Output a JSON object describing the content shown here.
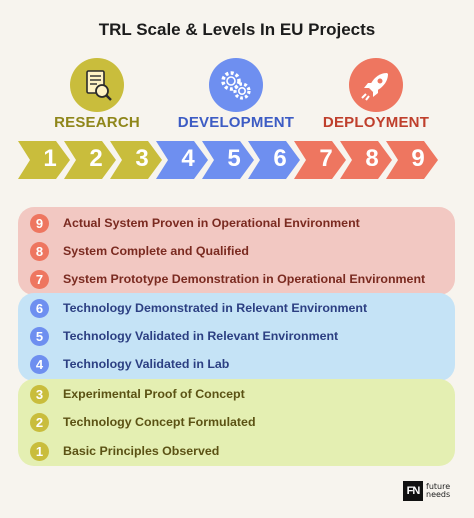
{
  "title": "TRL Scale & Levels In EU Projects",
  "colors": {
    "research": "#c9bd3c",
    "development": "#6e8ff0",
    "deployment": "#ee7660",
    "research_label": "#8f861a",
    "development_label": "#3d5cc4",
    "deployment_label": "#bf3f2c",
    "panel_red": "#f2c8c2",
    "panel_blue": "#c5e3f6",
    "panel_green": "#e4efb2",
    "text_red": "#7a2a20",
    "text_blue": "#2c3f82",
    "text_green": "#5b5214"
  },
  "phases": [
    {
      "label": "RESEARCH",
      "icon": "document-magnifier-icon"
    },
    {
      "label": "DEVELOPMENT",
      "icon": "gears-icon"
    },
    {
      "label": "DEPLOYMENT",
      "icon": "rocket-icon"
    }
  ],
  "steps": [
    "1",
    "2",
    "3",
    "4",
    "5",
    "6",
    "7",
    "8",
    "9"
  ],
  "levels": [
    {
      "num": "9",
      "text": "Actual System Proven in Operational Environment"
    },
    {
      "num": "8",
      "text": "System Complete and Qualified"
    },
    {
      "num": "7",
      "text": "System Prototype Demonstration in Operational Environment"
    },
    {
      "num": "6",
      "text": "Technology Demonstrated in Relevant Environment"
    },
    {
      "num": "5",
      "text": "Technology Validated in Relevant Environment"
    },
    {
      "num": "4",
      "text": "Technology Validated in Lab"
    },
    {
      "num": "3",
      "text": "Experimental Proof of Concept"
    },
    {
      "num": "2",
      "text": "Technology Concept Formulated"
    },
    {
      "num": "1",
      "text": "Basic Principles Observed"
    }
  ],
  "logo": {
    "mark": "FN",
    "line1": "future",
    "line2": "needs"
  }
}
